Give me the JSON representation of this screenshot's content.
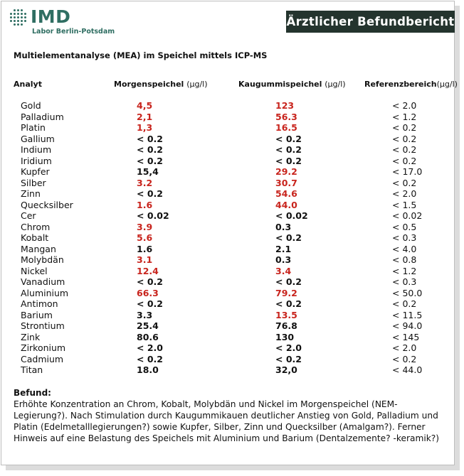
{
  "logo": {
    "name": "IMD",
    "subtitle": "Labor Berlin-Potsdam"
  },
  "header": {
    "badge": "Ärztlicher Befundbericht"
  },
  "report": {
    "title": "Multielementanalyse (MEA) im Speichel mittels ICP-MS",
    "columns": {
      "analyt": "Analyt",
      "morgen": "Morgenspeichel",
      "morgen_unit": "(µg/l)",
      "kaugummi": "Kaugummispeichel",
      "kaugummi_unit": "(µg/l)",
      "ref": "Referenzbereich",
      "ref_unit": "(µg/l)"
    },
    "rows": [
      {
        "analyt": "Gold",
        "morgen": "4,5",
        "morgen_high": true,
        "kaugummi": "123",
        "kaugummi_high": true,
        "ref": "< 2.0"
      },
      {
        "analyt": "Palladium",
        "morgen": "2,1",
        "morgen_high": true,
        "kaugummi": "56.3",
        "kaugummi_high": true,
        "ref": "< 1.2"
      },
      {
        "analyt": "Platin",
        "morgen": "1,3",
        "morgen_high": true,
        "kaugummi": "16.5",
        "kaugummi_high": true,
        "ref": "< 0.2"
      },
      {
        "analyt": "Gallium",
        "morgen": "< 0.2",
        "morgen_high": false,
        "kaugummi": "< 0.2",
        "kaugummi_high": false,
        "ref": "< 0.2"
      },
      {
        "analyt": "Indium",
        "morgen": "< 0.2",
        "morgen_high": false,
        "kaugummi": "< 0.2",
        "kaugummi_high": false,
        "ref": "< 0.2"
      },
      {
        "analyt": "Iridium",
        "morgen": "< 0.2",
        "morgen_high": false,
        "kaugummi": "< 0.2",
        "kaugummi_high": false,
        "ref": "< 0.2"
      },
      {
        "analyt": "Kupfer",
        "morgen": "15,4",
        "morgen_high": false,
        "kaugummi": "29.2",
        "kaugummi_high": true,
        "ref": "< 17.0"
      },
      {
        "analyt": "Silber",
        "morgen": "3.2",
        "morgen_high": true,
        "kaugummi": "30.7",
        "kaugummi_high": true,
        "ref": "< 0.2"
      },
      {
        "analyt": "Zinn",
        "morgen": "< 0.2",
        "morgen_high": false,
        "kaugummi": "54.6",
        "kaugummi_high": true,
        "ref": "< 2.0"
      },
      {
        "analyt": "Quecksilber",
        "morgen": "1.6",
        "morgen_high": true,
        "kaugummi": "44.0",
        "kaugummi_high": true,
        "ref": "< 1.5"
      },
      {
        "analyt": "Cer",
        "morgen": "< 0.02",
        "morgen_high": false,
        "kaugummi": "< 0.02",
        "kaugummi_high": false,
        "ref": "< 0.02"
      },
      {
        "analyt": "Chrom",
        "morgen": "3.9",
        "morgen_high": true,
        "kaugummi": "0.3",
        "kaugummi_high": false,
        "ref": "< 0.5"
      },
      {
        "analyt": "Kobalt",
        "morgen": "5.6",
        "morgen_high": true,
        "kaugummi": "< 0.2",
        "kaugummi_high": false,
        "ref": "< 0.3"
      },
      {
        "analyt": "Mangan",
        "morgen": "1.6",
        "morgen_high": false,
        "kaugummi": "2.1",
        "kaugummi_high": false,
        "ref": "< 4.0"
      },
      {
        "analyt": "Molybdän",
        "morgen": "3.1",
        "morgen_high": true,
        "kaugummi": "0.3",
        "kaugummi_high": false,
        "ref": "< 0.8"
      },
      {
        "analyt": "Nickel",
        "morgen": "12.4",
        "morgen_high": true,
        "kaugummi": "3.4",
        "kaugummi_high": true,
        "ref": "< 1.2"
      },
      {
        "analyt": "Vanadium",
        "morgen": "< 0.2",
        "morgen_high": false,
        "kaugummi": "< 0.2",
        "kaugummi_high": false,
        "ref": "< 0.3"
      },
      {
        "analyt": "Aluminium",
        "morgen": "66.3",
        "morgen_high": true,
        "kaugummi": "79.2",
        "kaugummi_high": true,
        "ref": "< 50.0"
      },
      {
        "analyt": "Antimon",
        "morgen": "< 0.2",
        "morgen_high": false,
        "kaugummi": "< 0.2",
        "kaugummi_high": false,
        "ref": "< 0.2"
      },
      {
        "analyt": "Barium",
        "morgen": "3.3",
        "morgen_high": false,
        "kaugummi": "13.5",
        "kaugummi_high": true,
        "ref": "< 11.5"
      },
      {
        "analyt": "Strontium",
        "morgen": "25.4",
        "morgen_high": false,
        "kaugummi": "76.8",
        "kaugummi_high": false,
        "ref": "< 94.0"
      },
      {
        "analyt": "Zink",
        "morgen": "80.6",
        "morgen_high": false,
        "kaugummi": "130",
        "kaugummi_high": false,
        "ref": "< 145"
      },
      {
        "analyt": "Zirkonium",
        "morgen": "< 2.0",
        "morgen_high": false,
        "kaugummi": "< 2.0",
        "kaugummi_high": false,
        "ref": "< 2.0"
      },
      {
        "analyt": "Cadmium",
        "morgen": "< 0.2",
        "morgen_high": false,
        "kaugummi": "< 0.2",
        "kaugummi_high": false,
        "ref": "< 0.2"
      },
      {
        "analyt": "Titan",
        "morgen": "18.0",
        "morgen_high": false,
        "kaugummi": "32,0",
        "kaugummi_high": false,
        "ref": "< 44.0"
      }
    ],
    "befund_label": "Befund:",
    "befund_text": "Erhöhte Konzentration an Chrom, Kobalt, Molybdän und Nickel im Morgenspeichel (NEM-Legierung?). Nach Stimulation durch Kaugummikauen deutlicher Anstieg von Gold, Palladium und Platin (Edelmetalllegierungen?) sowie Kupfer, Silber, Zinn und Quecksilber (Amalgam?). Ferner Hinweis auf eine Belastung des Speichels mit Aluminium und Barium (Dentalzemente? -keramik?)"
  },
  "colors": {
    "brand": "#2f6e62",
    "header_bg": "#24342e",
    "elevated": "#c8241d"
  }
}
